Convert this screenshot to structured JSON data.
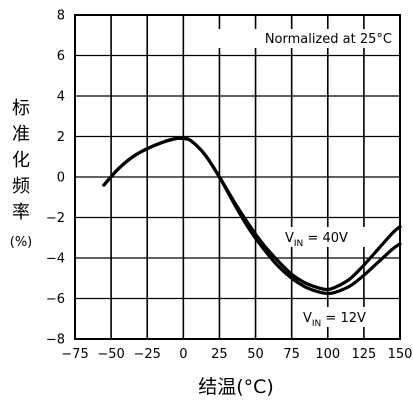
{
  "chart_data": {
    "type": "line",
    "title": "",
    "annotation": "Normalized at 25°C",
    "xlabel": "结温(°C)",
    "ylabel": [
      "标",
      "准",
      "化",
      "频",
      "率",
      "(%)"
    ],
    "xlim": [
      -75,
      150
    ],
    "ylim": [
      -8,
      8
    ],
    "xticks": [
      -75,
      -50,
      -25,
      0,
      25,
      50,
      75,
      100,
      125,
      150
    ],
    "yticks": [
      -8,
      -6,
      -4,
      -2,
      0,
      2,
      4,
      6,
      8
    ],
    "grid": true,
    "series": [
      {
        "name": "VIN = 40V",
        "label_base": "V",
        "label_sub": "IN",
        "label_rest": " = 40V",
        "x": [
          -55,
          -45,
          -35,
          -25,
          -15,
          -5,
          0,
          5,
          15,
          25,
          35,
          45,
          55,
          65,
          75,
          85,
          95,
          100,
          105,
          115,
          125,
          135,
          145,
          150
        ],
        "y": [
          -0.4,
          0.4,
          1.0,
          1.4,
          1.7,
          1.9,
          1.9,
          1.8,
          1.1,
          0.0,
          -1.2,
          -2.3,
          -3.3,
          -4.1,
          -4.8,
          -5.25,
          -5.5,
          -5.55,
          -5.45,
          -5.05,
          -4.35,
          -3.55,
          -2.75,
          -2.45
        ]
      },
      {
        "name": "VIN = 12V",
        "label_base": "V",
        "label_sub": "IN",
        "label_rest": " = 12V",
        "x": [
          -55,
          -45,
          -35,
          -25,
          -15,
          -5,
          0,
          5,
          15,
          25,
          35,
          45,
          55,
          65,
          75,
          85,
          95,
          100,
          105,
          115,
          125,
          135,
          145,
          150
        ],
        "y": [
          -0.4,
          0.4,
          1.0,
          1.4,
          1.7,
          1.9,
          1.9,
          1.8,
          1.1,
          0.0,
          -1.3,
          -2.5,
          -3.5,
          -4.35,
          -5.0,
          -5.45,
          -5.7,
          -5.75,
          -5.7,
          -5.4,
          -4.85,
          -4.2,
          -3.55,
          -3.3
        ]
      }
    ]
  }
}
